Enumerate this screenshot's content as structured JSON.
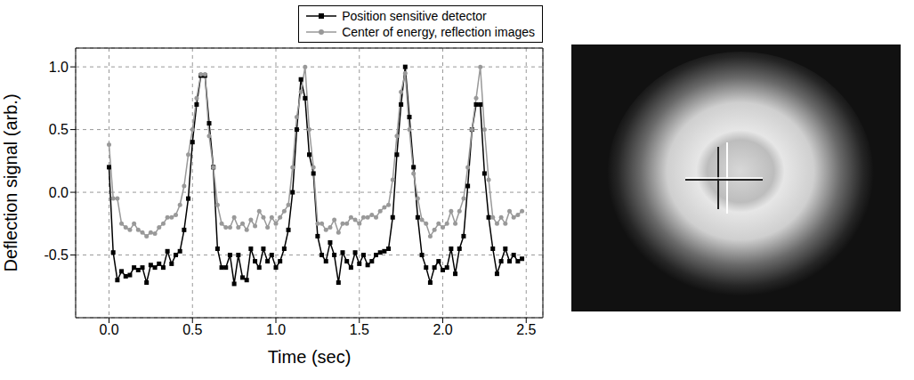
{
  "chart_data": {
    "type": "line",
    "xlabel": "Time (sec)",
    "ylabel": "Deflection signal (arb.)",
    "xlim": [
      -0.2,
      2.6
    ],
    "ylim": [
      -1.0,
      1.15
    ],
    "xticks": [
      {
        "value": 0,
        "label": "0.0"
      },
      0.5,
      {
        "value": 1,
        "label": "1.0"
      },
      1.5,
      {
        "value": 2,
        "label": "2.0"
      },
      2.5
    ],
    "yticks": [
      -0.5,
      {
        "value": 0,
        "label": "0.0"
      },
      0.5,
      {
        "value": 1,
        "label": "1.0"
      }
    ],
    "grid": true,
    "legend": "upper right",
    "x": [
      0,
      0.025,
      0.05,
      0.075,
      0.1,
      0.125,
      0.15,
      0.175,
      0.2,
      0.225,
      0.25,
      0.275,
      0.3,
      0.325,
      0.35,
      0.375,
      0.4,
      0.425,
      0.45,
      0.475,
      0.5,
      0.525,
      0.55,
      0.575,
      0.6,
      0.625,
      0.65,
      0.675,
      0.7,
      0.725,
      0.75,
      0.775,
      0.8,
      0.825,
      0.85,
      0.875,
      0.9,
      0.925,
      0.95,
      0.975,
      1.0,
      1.025,
      1.05,
      1.075,
      1.1,
      1.125,
      1.15,
      1.175,
      1.2,
      1.225,
      1.25,
      1.275,
      1.3,
      1.325,
      1.35,
      1.375,
      1.4,
      1.425,
      1.45,
      1.475,
      1.5,
      1.525,
      1.55,
      1.575,
      1.6,
      1.625,
      1.65,
      1.675,
      1.7,
      1.725,
      1.75,
      1.775,
      1.8,
      1.825,
      1.85,
      1.875,
      1.9,
      1.925,
      1.95,
      1.975,
      2.0,
      2.025,
      2.05,
      2.075,
      2.1,
      2.125,
      2.15,
      2.175,
      2.2,
      2.225,
      2.25,
      2.275,
      2.3,
      2.325,
      2.35,
      2.375,
      2.4,
      2.425,
      2.45,
      2.475
    ],
    "series": [
      {
        "name": "Position sensitive detector",
        "color": "#000000",
        "marker": "square",
        "line_style": "solid",
        "values": [
          0.2,
          -0.48,
          -0.7,
          -0.63,
          -0.67,
          -0.66,
          -0.6,
          -0.62,
          -0.6,
          -0.72,
          -0.58,
          -0.6,
          -0.57,
          -0.6,
          -0.47,
          -0.57,
          -0.5,
          -0.47,
          -0.3,
          -0.05,
          0.4,
          0.7,
          0.93,
          0.93,
          0.55,
          0.2,
          -0.45,
          -0.6,
          -0.6,
          -0.5,
          -0.73,
          -0.5,
          -0.68,
          -0.7,
          -0.45,
          -0.55,
          -0.6,
          -0.45,
          -0.55,
          -0.5,
          -0.6,
          -0.55,
          -0.45,
          -0.3,
          0.0,
          0.5,
          0.9,
          0.75,
          0.3,
          0.15,
          -0.35,
          -0.5,
          -0.55,
          -0.4,
          -0.5,
          -0.72,
          -0.48,
          -0.55,
          -0.6,
          -0.48,
          -0.57,
          -0.5,
          -0.58,
          -0.55,
          -0.5,
          -0.48,
          -0.47,
          -0.45,
          -0.2,
          0.3,
          0.7,
          1.0,
          0.6,
          0.2,
          -0.2,
          -0.5,
          -0.6,
          -0.72,
          -0.6,
          -0.55,
          -0.62,
          -0.6,
          -0.45,
          -0.65,
          -0.45,
          -0.35,
          0.05,
          0.5,
          0.7,
          0.7,
          0.15,
          -0.2,
          -0.45,
          -0.65,
          -0.55,
          -0.45,
          -0.55,
          -0.5,
          -0.55,
          -0.53
        ]
      },
      {
        "name": "Center of energy, reflection images",
        "color": "#999999",
        "marker": "circle",
        "line_style": "solid",
        "values": [
          0.38,
          -0.05,
          -0.05,
          -0.25,
          -0.28,
          -0.3,
          -0.25,
          -0.3,
          -0.32,
          -0.35,
          -0.32,
          -0.33,
          -0.28,
          -0.25,
          -0.2,
          -0.2,
          -0.18,
          -0.1,
          0.05,
          0.3,
          0.5,
          0.75,
          0.94,
          0.94,
          0.45,
          0.2,
          -0.1,
          -0.25,
          -0.28,
          -0.28,
          -0.2,
          -0.28,
          -0.25,
          -0.3,
          -0.22,
          -0.27,
          -0.15,
          -0.2,
          -0.28,
          -0.2,
          -0.25,
          -0.2,
          -0.15,
          -0.1,
          0.2,
          0.6,
          0.8,
          1.0,
          0.5,
          0.2,
          -0.25,
          -0.25,
          -0.3,
          -0.28,
          -0.22,
          -0.32,
          -0.25,
          -0.25,
          -0.2,
          -0.22,
          -0.25,
          -0.2,
          -0.2,
          -0.18,
          -0.2,
          -0.15,
          -0.12,
          -0.1,
          0.1,
          0.45,
          0.8,
          0.95,
          0.5,
          0.15,
          -0.05,
          -0.22,
          -0.25,
          -0.35,
          -0.3,
          -0.25,
          -0.28,
          -0.25,
          -0.15,
          -0.25,
          -0.15,
          -0.05,
          0.2,
          0.5,
          0.75,
          1.0,
          0.5,
          0.1,
          -0.2,
          -0.25,
          -0.2,
          -0.25,
          -0.15,
          -0.2,
          -0.18,
          -0.15
        ]
      }
    ]
  }
}
